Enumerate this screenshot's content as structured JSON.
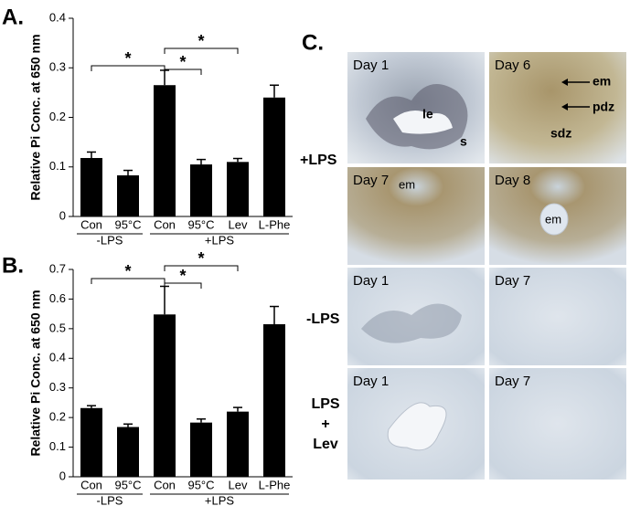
{
  "chart_data": [
    {
      "type": "bar",
      "label": "A.",
      "y_label": "Relative Pi Conc. at 650 nm",
      "categories": [
        "Con",
        "95°C",
        "Con",
        "95°C",
        "Lev",
        "L-Phe"
      ],
      "values": [
        0.118,
        0.083,
        0.265,
        0.105,
        0.11,
        0.24
      ],
      "errors": [
        0.012,
        0.01,
        0.03,
        0.01,
        0.007,
        0.025
      ],
      "color": "#000000",
      "groups": [
        {
          "label": "-LPS",
          "span": [
            0,
            1
          ]
        },
        {
          "label": "+LPS",
          "span": [
            2,
            5
          ]
        }
      ],
      "significance": [
        {
          "pair": [
            0,
            2
          ],
          "label": "*"
        },
        {
          "pair": [
            2,
            3
          ],
          "label": "*"
        },
        {
          "pair": [
            2,
            4
          ],
          "label": "*"
        }
      ],
      "ylim": [
        0,
        0.4
      ],
      "yticks": [
        0,
        0.1,
        0.2,
        0.3,
        0.4
      ]
    },
    {
      "type": "bar",
      "label": "B.",
      "y_label": "Relative Pi Conc. at 650 nm",
      "categories": [
        "Con",
        "95°C",
        "Con",
        "95°C",
        "Lev",
        "L-Phe"
      ],
      "values": [
        0.232,
        0.168,
        0.548,
        0.183,
        0.22,
        0.515
      ],
      "errors": [
        0.008,
        0.01,
        0.095,
        0.012,
        0.014,
        0.06
      ],
      "color": "#000000",
      "groups": [
        {
          "label": "-LPS",
          "span": [
            0,
            1
          ]
        },
        {
          "label": "+LPS",
          "span": [
            2,
            5
          ]
        }
      ],
      "significance": [
        {
          "pair": [
            0,
            2
          ],
          "label": "*"
        },
        {
          "pair": [
            2,
            3
          ],
          "label": "*"
        },
        {
          "pair": [
            2,
            4
          ],
          "label": "*"
        }
      ],
      "ylim": [
        0,
        0.7
      ],
      "yticks": [
        0,
        0.1,
        0.2,
        0.3,
        0.4,
        0.5,
        0.6,
        0.7
      ]
    }
  ],
  "panel_c": {
    "label": "C.",
    "row_groups": [
      {
        "label": [
          "+LPS"
        ],
        "images": [
          {
            "title": "Day 1",
            "annotations": [
              "le",
              "s"
            ]
          },
          {
            "title": "Day 6",
            "annotations": [
              "em",
              "pdz",
              "sdz"
            ]
          },
          {
            "title": "Day 7",
            "annotations": [
              "em"
            ]
          },
          {
            "title": "Day 8",
            "annotations": [
              "em"
            ]
          }
        ]
      },
      {
        "label": [
          "-LPS"
        ],
        "images": [
          {
            "title": "Day 1",
            "annotations": []
          },
          {
            "title": "Day 7",
            "annotations": []
          }
        ]
      },
      {
        "label": [
          "LPS",
          "+",
          "Lev"
        ],
        "images": [
          {
            "title": "Day 1",
            "annotations": []
          },
          {
            "title": "Day 7",
            "annotations": []
          }
        ]
      }
    ]
  }
}
